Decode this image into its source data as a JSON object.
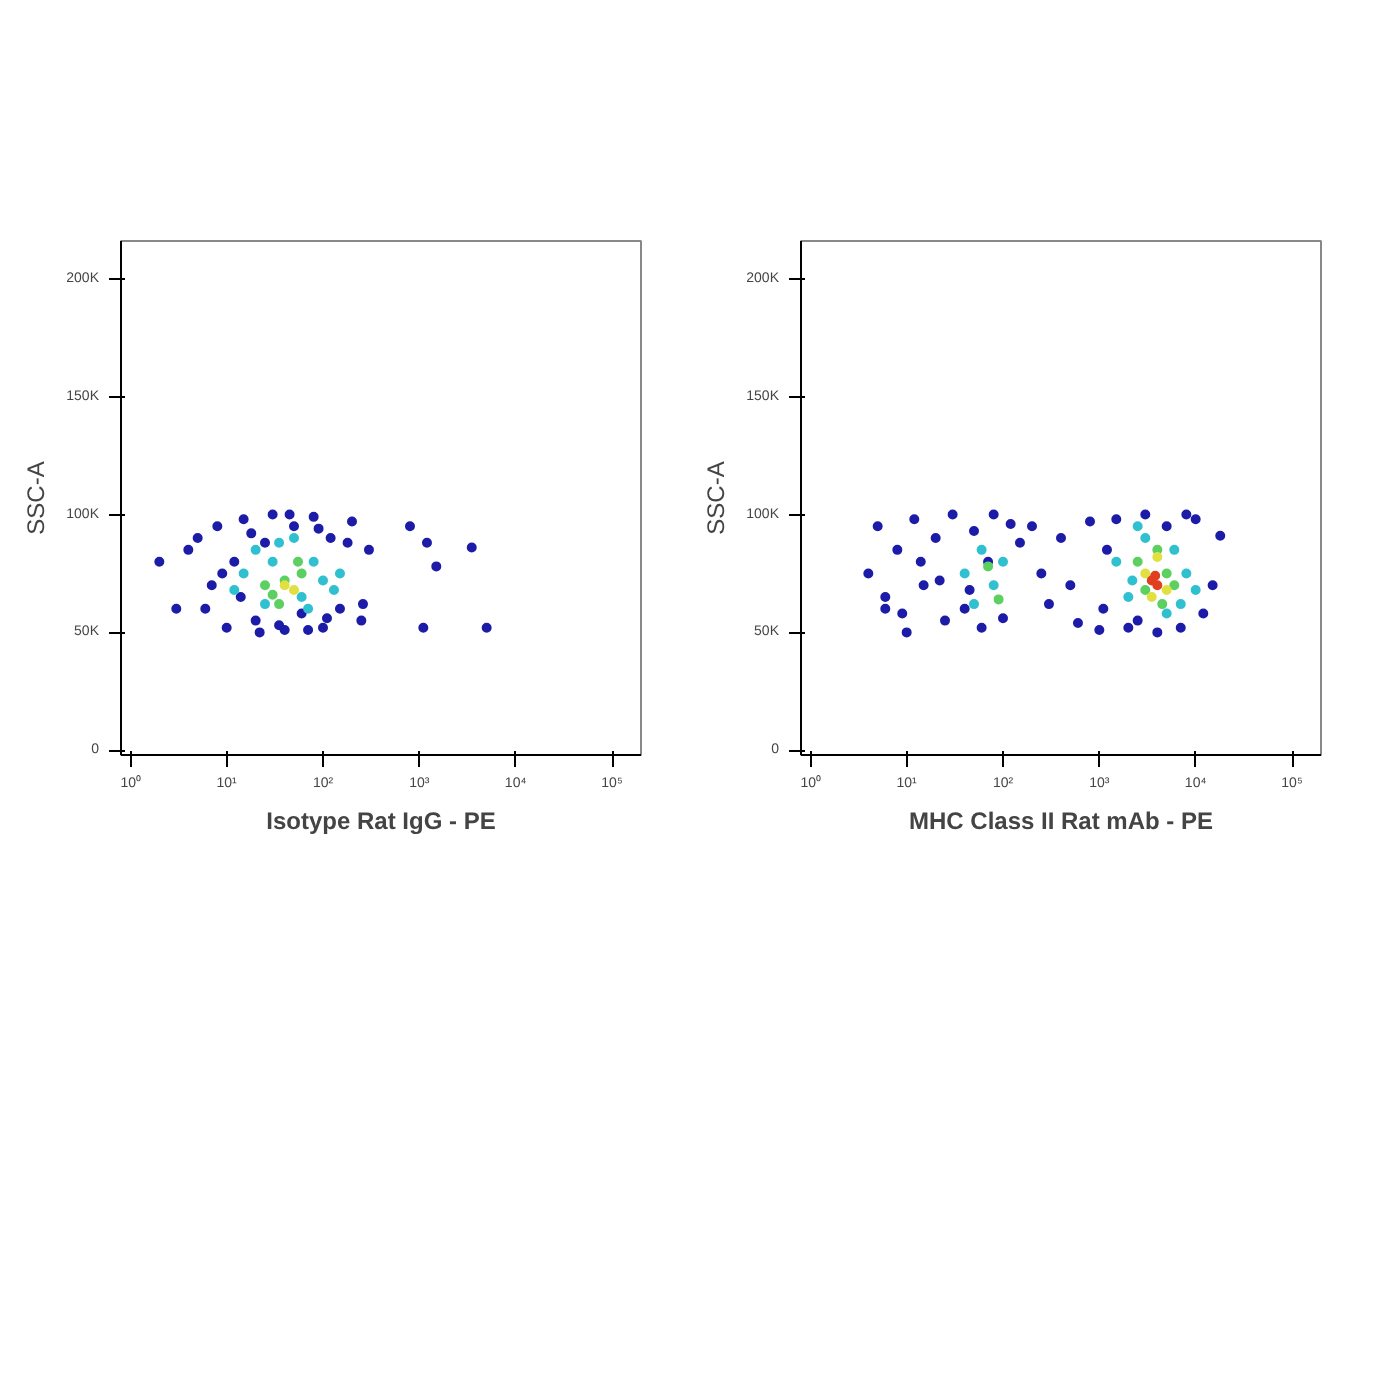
{
  "chart_data": [
    {
      "type": "scatter",
      "xlabel": "Isotype Rat IgG - PE",
      "ylabel": "SSC-A",
      "log": "x",
      "marker": "circle",
      "grid": false,
      "xlim": [
        0.8,
        200000
      ],
      "ylim": [
        -2000,
        216000
      ],
      "xticks": [
        {
          "value": 1,
          "label": "10⁰"
        },
        {
          "value": 10,
          "label": "10¹"
        },
        {
          "value": 100,
          "label": "10²"
        },
        {
          "value": 1000,
          "label": "10³"
        },
        {
          "value": 10000,
          "label": "10⁴"
        },
        {
          "value": 100000,
          "label": "10⁵"
        }
      ],
      "yticks": [
        {
          "value": 0,
          "label": "0"
        },
        {
          "value": 50000,
          "label": "50K"
        },
        {
          "value": 100000,
          "label": "100K"
        },
        {
          "value": 150000,
          "label": "150K"
        },
        {
          "value": 200000,
          "label": "200K"
        }
      ],
      "series": [
        {
          "color": "#1c1ca8",
          "x": [
            5,
            6,
            8,
            10,
            12,
            15,
            20,
            25,
            30,
            40,
            50,
            60,
            80,
            100,
            120,
            150,
            200,
            250,
            300,
            7,
            9,
            14,
            18,
            22,
            35,
            45,
            70,
            90,
            110,
            180,
            260,
            4,
            2,
            3,
            800,
            1100,
            1500,
            3500,
            5000,
            1200
          ],
          "values": [
            90000,
            60000,
            95000,
            52000,
            80000,
            98000,
            55000,
            88000,
            100000,
            51000,
            95000,
            58000,
            99000,
            52000,
            90000,
            60000,
            97000,
            55000,
            85000,
            70000,
            75000,
            65000,
            92000,
            50000,
            53000,
            100000,
            51000,
            94000,
            56000,
            88000,
            62000,
            85000,
            80000,
            60000,
            95000,
            52000,
            78000,
            86000,
            52000,
            88000
          ]
        },
        {
          "color": "#30c0d0",
          "x": [
            15,
            20,
            25,
            30,
            130,
            50,
            60,
            80,
            100,
            150,
            12,
            35,
            70
          ],
          "values": [
            75000,
            85000,
            62000,
            80000,
            68000,
            90000,
            65000,
            80000,
            72000,
            75000,
            68000,
            88000,
            60000
          ]
        },
        {
          "color": "#5cd060",
          "x": [
            25,
            30,
            40,
            55,
            60,
            35
          ],
          "values": [
            70000,
            66000,
            72000,
            80000,
            75000,
            62000
          ]
        },
        {
          "color": "#e0e040",
          "x": [
            40,
            50
          ],
          "values": [
            70000,
            68000
          ]
        }
      ]
    },
    {
      "type": "scatter",
      "xlabel": "MHC Class II Rat mAb - PE",
      "ylabel": "SSC-A",
      "log": "x",
      "marker": "circle",
      "grid": false,
      "xlim": [
        0.8,
        200000
      ],
      "ylim": [
        -2000,
        216000
      ],
      "xticks": [
        {
          "value": 1,
          "label": "10⁰"
        },
        {
          "value": 10,
          "label": "10¹"
        },
        {
          "value": 100,
          "label": "10²"
        },
        {
          "value": 1000,
          "label": "10³"
        },
        {
          "value": 10000,
          "label": "10⁴"
        },
        {
          "value": 100000,
          "label": "10⁵"
        }
      ],
      "yticks": [
        {
          "value": 0,
          "label": "0"
        },
        {
          "value": 50000,
          "label": "50K"
        },
        {
          "value": 100000,
          "label": "100K"
        },
        {
          "value": 150000,
          "label": "150K"
        },
        {
          "value": 200000,
          "label": "200K"
        }
      ],
      "series": [
        {
          "color": "#1c1ca8",
          "x": [
            4,
            5,
            6,
            8,
            10,
            12,
            15,
            20,
            25,
            30,
            40,
            50,
            60,
            80,
            100,
            150,
            200,
            300,
            400,
            600,
            800,
            1000,
            1200,
            1500,
            2000,
            3000,
            4000,
            5000,
            7000,
            10000,
            15000,
            18000,
            6,
            9,
            14,
            22,
            45,
            70,
            120,
            250,
            500,
            1100,
            2500,
            8000,
            12000
          ],
          "values": [
            75000,
            95000,
            60000,
            85000,
            50000,
            98000,
            70000,
            90000,
            55000,
            100000,
            60000,
            93000,
            52000,
            100000,
            56000,
            88000,
            95000,
            62000,
            90000,
            54000,
            97000,
            51000,
            85000,
            98000,
            52000,
            100000,
            50000,
            95000,
            52000,
            98000,
            70000,
            91000,
            65000,
            58000,
            80000,
            72000,
            68000,
            80000,
            96000,
            75000,
            70000,
            60000,
            55000,
            100000,
            58000
          ]
        },
        {
          "color": "#30c0d0",
          "x": [
            40,
            60,
            80,
            100,
            50,
            1500,
            2000,
            3000,
            2200,
            5000,
            6000,
            8000,
            10000,
            2500,
            7000
          ],
          "values": [
            75000,
            85000,
            70000,
            80000,
            62000,
            80000,
            65000,
            90000,
            72000,
            58000,
            85000,
            75000,
            68000,
            95000,
            62000
          ]
        },
        {
          "color": "#5cd060",
          "x": [
            70,
            90,
            2500,
            3000,
            4000,
            5000,
            6000,
            4500
          ],
          "values": [
            78000,
            64000,
            80000,
            68000,
            85000,
            75000,
            70000,
            62000
          ]
        },
        {
          "color": "#e0e040",
          "x": [
            3000,
            4000,
            5000,
            3500
          ],
          "values": [
            75000,
            82000,
            68000,
            65000
          ]
        },
        {
          "color": "#e04020",
          "x": [
            3500,
            4000,
            3800
          ],
          "values": [
            72000,
            70000,
            74000
          ]
        }
      ]
    }
  ]
}
